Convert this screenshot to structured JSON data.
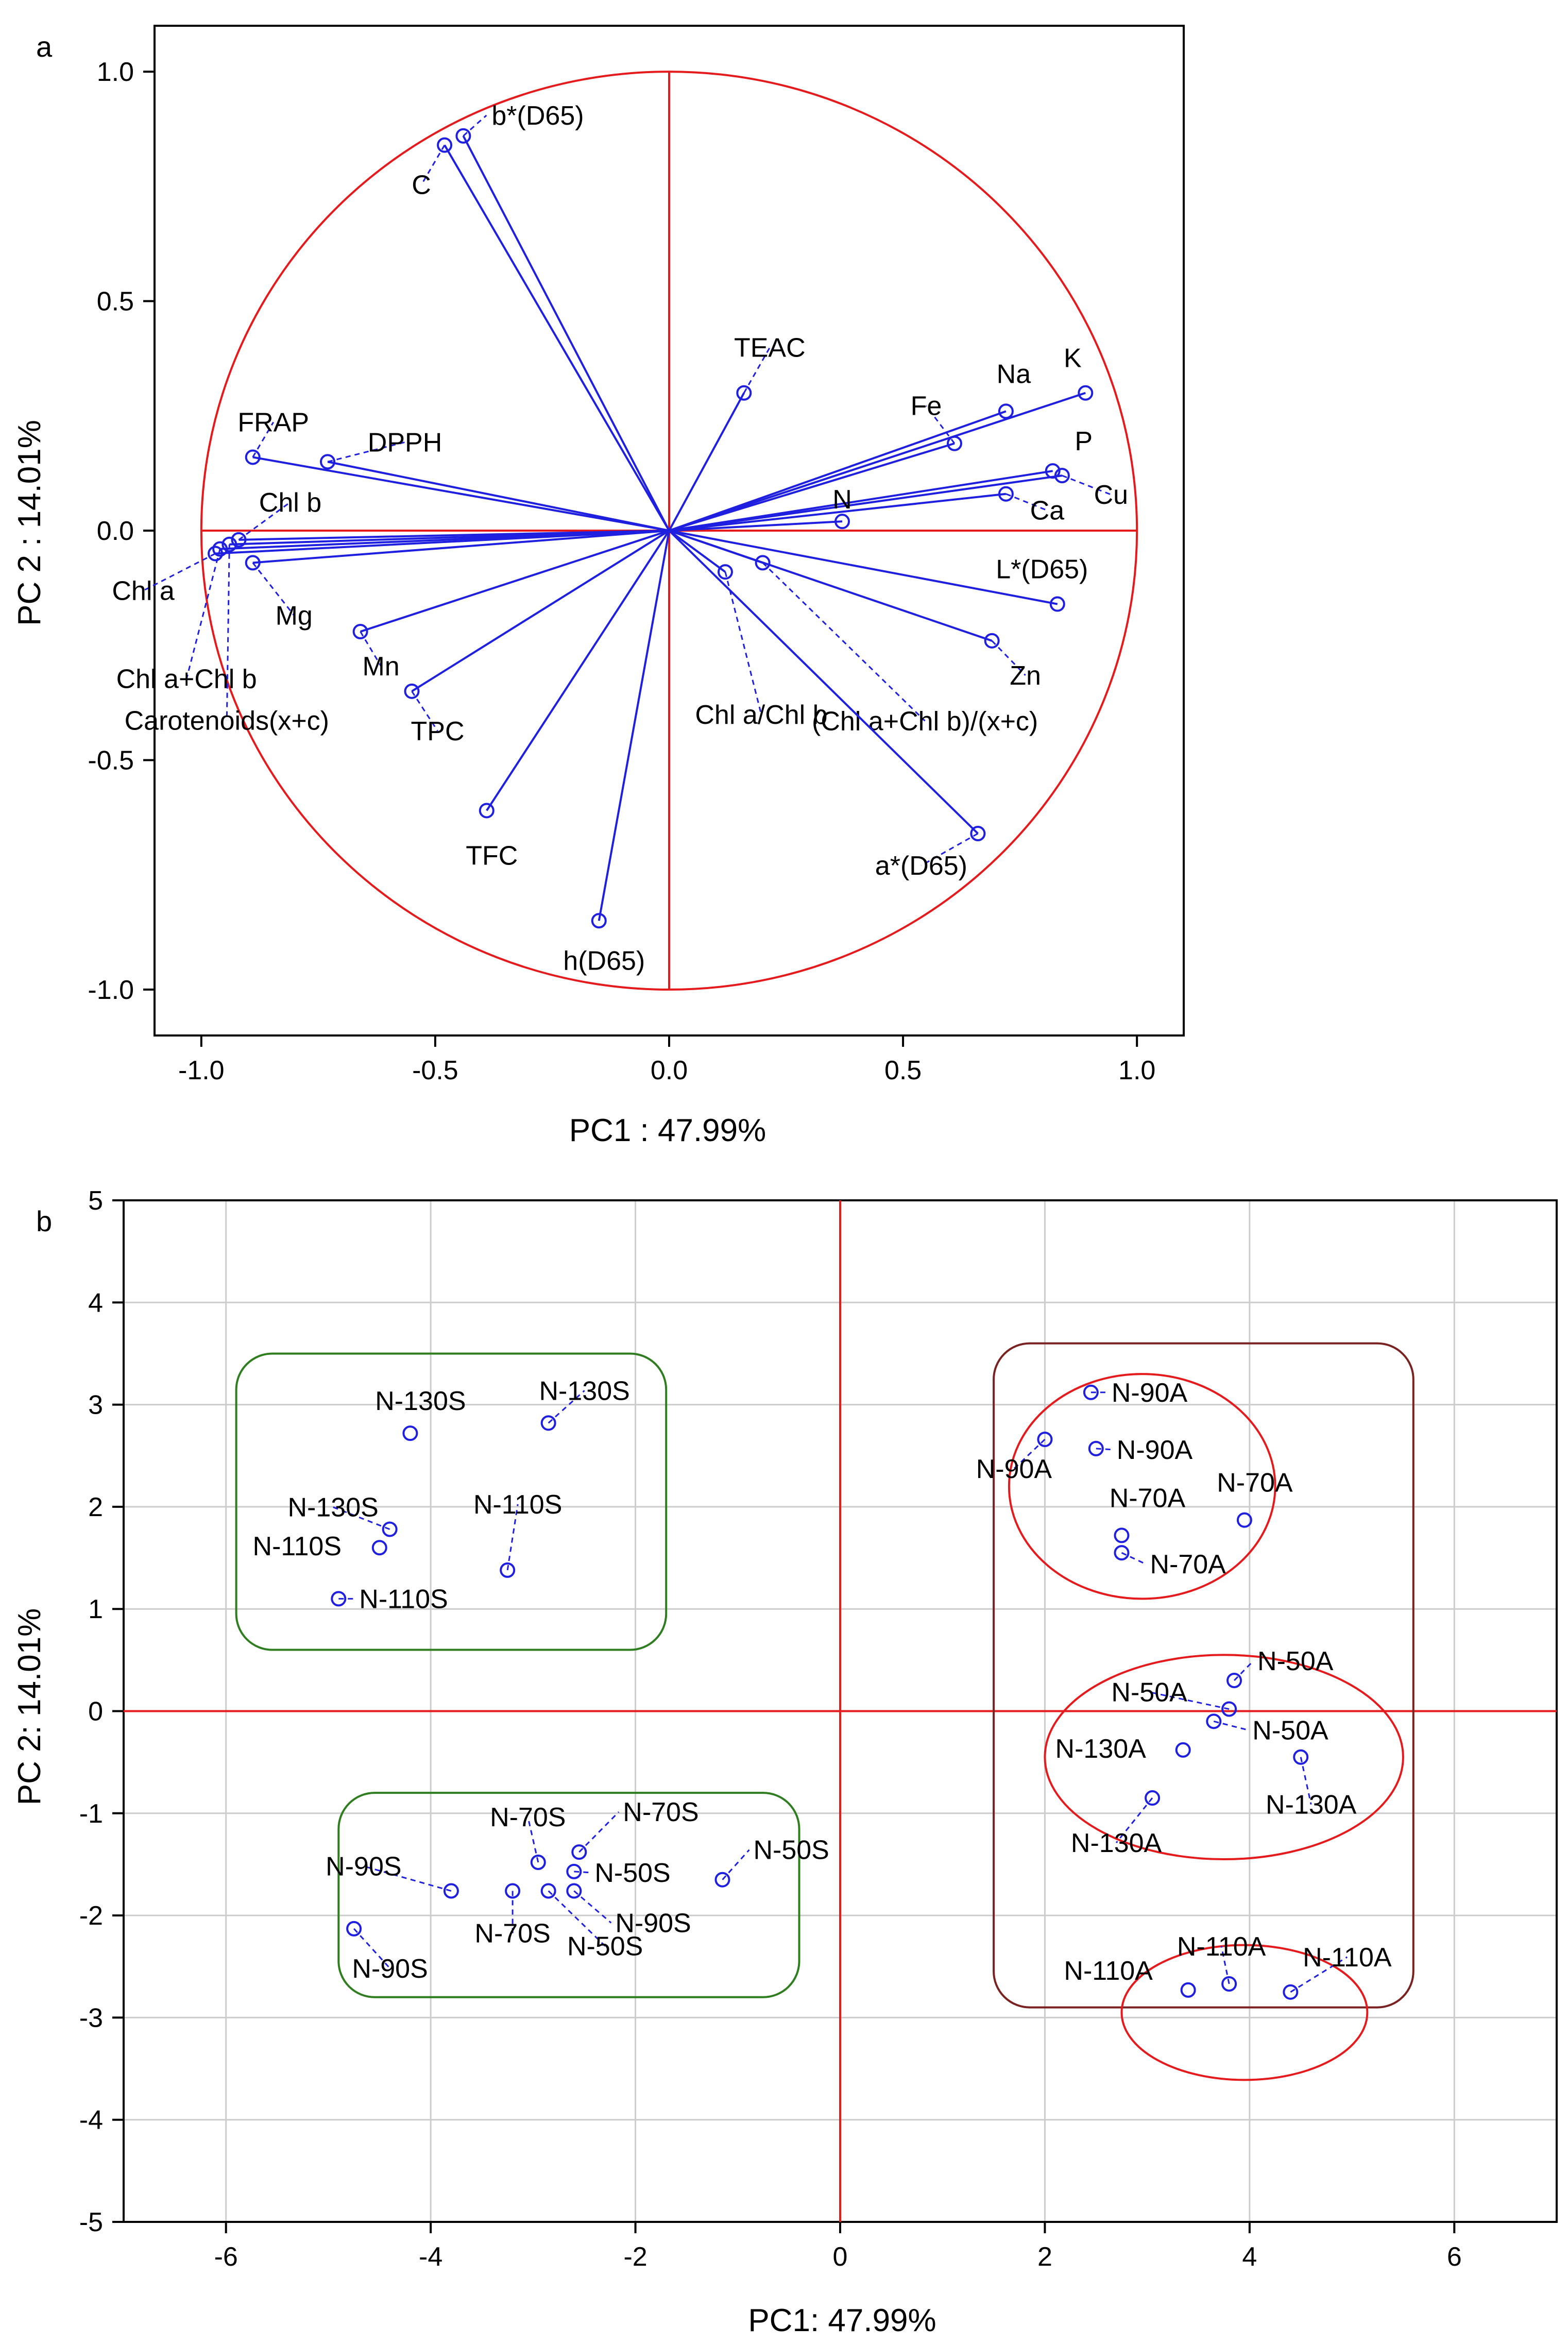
{
  "chart_data": [
    {
      "type": "scatter",
      "subtype": "loading-circle",
      "panel_label": "a",
      "xlabel": "PC1 : 47.99%",
      "ylabel": "PC 2 : 14.01%",
      "xlim": [
        -1.1,
        1.1
      ],
      "ylim": [
        -1.1,
        1.1
      ],
      "x_ticks": [
        "-1.0",
        "-0.5",
        "0.0",
        "0.5",
        "1.0"
      ],
      "y_ticks": [
        "-1.0",
        "-0.5",
        "0.0",
        "0.5",
        "1.0"
      ],
      "grid": false,
      "colors": {
        "circle": "#e41a1c",
        "vector": "#1f1fe0",
        "frame": "#000000"
      },
      "points": [
        {
          "label": "b*(D65)",
          "x": -0.44,
          "y": 0.86
        },
        {
          "label": "C",
          "x": -0.48,
          "y": 0.84
        },
        {
          "label": "TEAC",
          "x": 0.16,
          "y": 0.3
        },
        {
          "label": "Na",
          "x": 0.72,
          "y": 0.26
        },
        {
          "label": "K",
          "x": 0.89,
          "y": 0.3
        },
        {
          "label": "Fe",
          "x": 0.61,
          "y": 0.19
        },
        {
          "label": "P",
          "x": 0.82,
          "y": 0.13
        },
        {
          "label": "Cu",
          "x": 0.84,
          "y": 0.12
        },
        {
          "label": "Ca",
          "x": 0.72,
          "y": 0.08
        },
        {
          "label": "N",
          "x": 0.37,
          "y": 0.02
        },
        {
          "label": "FRAP",
          "x": -0.89,
          "y": 0.16
        },
        {
          "label": "DPPH",
          "x": -0.73,
          "y": 0.15
        },
        {
          "label": "Chl b",
          "x": -0.92,
          "y": -0.02
        },
        {
          "label": "Chl a",
          "x": -0.97,
          "y": -0.05
        },
        {
          "label": "Mg",
          "x": -0.89,
          "y": -0.07
        },
        {
          "label": "Chl a+Chl b",
          "x": -0.96,
          "y": -0.04
        },
        {
          "label": "Carotenoids(x+c)",
          "x": -0.94,
          "y": -0.03
        },
        {
          "label": "Mn",
          "x": -0.66,
          "y": -0.22
        },
        {
          "label": "TPC",
          "x": -0.55,
          "y": -0.35
        },
        {
          "label": "TFC",
          "x": -0.39,
          "y": -0.61
        },
        {
          "label": "h(D65)",
          "x": -0.15,
          "y": -0.85
        },
        {
          "label": "Chl a/Chl b",
          "x": 0.12,
          "y": -0.09
        },
        {
          "label": "(Chl a+Chl b)/(x+c)",
          "x": 0.2,
          "y": -0.07
        },
        {
          "label": "L*(D65)",
          "x": 0.83,
          "y": -0.16
        },
        {
          "label": "Zn",
          "x": 0.69,
          "y": -0.24
        },
        {
          "label": "a*(D65)",
          "x": 0.66,
          "y": -0.66
        }
      ]
    },
    {
      "type": "scatter",
      "subtype": "score-plot",
      "panel_label": "b",
      "xlabel": "PC1: 47.99%",
      "ylabel": "PC 2: 14.01%",
      "xlim": [
        -7,
        7
      ],
      "ylim": [
        -5,
        5
      ],
      "x_ticks": [
        "-6",
        "-4",
        "-2",
        "0",
        "2",
        "4",
        "6"
      ],
      "y_ticks": [
        "-5",
        "-4",
        "-3",
        "-2",
        "-1",
        "0",
        "1",
        "2",
        "3",
        "4",
        "5"
      ],
      "grid": true,
      "colors": {
        "axes_lines": "#e41a1c",
        "marker": "#1f1fe0",
        "group_s": "#2e7d1e",
        "group_a": "#7a2222",
        "ellipse": "#e41a1c",
        "grid": "#cccccc"
      },
      "groups": [
        {
          "name": "S-samples upper",
          "x_range": [
            -5.9,
            -1.7
          ],
          "y_range": [
            0.6,
            3.5
          ]
        },
        {
          "name": "S-samples lower",
          "x_range": [
            -4.9,
            -0.4
          ],
          "y_range": [
            -2.8,
            -0.8
          ]
        },
        {
          "name": "A-samples",
          "x_range": [
            1.5,
            5.6
          ],
          "y_range": [
            -2.9,
            3.6
          ]
        }
      ],
      "ellipses": [
        {
          "name": "N-70A/N-90A cluster",
          "center": [
            2.95,
            2.2
          ],
          "radius": [
            1.3,
            1.1
          ]
        },
        {
          "name": "N-50A/N-130A cluster",
          "center": [
            3.75,
            -0.45
          ],
          "radius": [
            1.75,
            1.0
          ]
        },
        {
          "name": "N-110A cluster",
          "center": [
            3.95,
            -2.95
          ],
          "radius": [
            1.2,
            0.66
          ]
        }
      ],
      "points": [
        {
          "label": "N-130S",
          "x": -4.2,
          "y": 2.72
        },
        {
          "label": "N-130S",
          "x": -2.85,
          "y": 2.82
        },
        {
          "label": "N-130S",
          "x": -4.4,
          "y": 1.78
        },
        {
          "label": "N-110S",
          "x": -4.5,
          "y": 1.6
        },
        {
          "label": "N-110S",
          "x": -3.25,
          "y": 1.38
        },
        {
          "label": "N-110S",
          "x": -4.9,
          "y": 1.1
        },
        {
          "label": "N-70S",
          "x": -2.95,
          "y": -1.48
        },
        {
          "label": "N-70S",
          "x": -2.55,
          "y": -1.38
        },
        {
          "label": "N-50S",
          "x": -2.6,
          "y": -1.57
        },
        {
          "label": "N-50S",
          "x": -1.15,
          "y": -1.65
        },
        {
          "label": "N-90S",
          "x": -3.8,
          "y": -1.76
        },
        {
          "label": "N-70S",
          "x": -3.2,
          "y": -1.76
        },
        {
          "label": "N-50S",
          "x": -2.85,
          "y": -1.76
        },
        {
          "label": "N-90S",
          "x": -2.6,
          "y": -1.76
        },
        {
          "label": "N-90S",
          "x": -4.75,
          "y": -2.13
        },
        {
          "label": "N-90A",
          "x": 2.45,
          "y": 3.12
        },
        {
          "label": "N-90A",
          "x": 2.0,
          "y": 2.66
        },
        {
          "label": "N-90A",
          "x": 2.5,
          "y": 2.57
        },
        {
          "label": "N-70A",
          "x": 2.75,
          "y": 1.72
        },
        {
          "label": "N-70A",
          "x": 3.95,
          "y": 1.87
        },
        {
          "label": "N-70A",
          "x": 2.75,
          "y": 1.55
        },
        {
          "label": "N-50A",
          "x": 3.85,
          "y": 0.3
        },
        {
          "label": "N-50A",
          "x": 3.8,
          "y": 0.02
        },
        {
          "label": "N-50A",
          "x": 3.65,
          "y": -0.1
        },
        {
          "label": "N-130A",
          "x": 3.35,
          "y": -0.38
        },
        {
          "label": "N-130A",
          "x": 4.5,
          "y": -0.45
        },
        {
          "label": "N-130A",
          "x": 3.05,
          "y": -0.85
        },
        {
          "label": "N-110A",
          "x": 3.4,
          "y": -2.73
        },
        {
          "label": "N-110A",
          "x": 3.8,
          "y": -2.67
        },
        {
          "label": "N-110A",
          "x": 4.4,
          "y": -2.75
        }
      ]
    }
  ]
}
